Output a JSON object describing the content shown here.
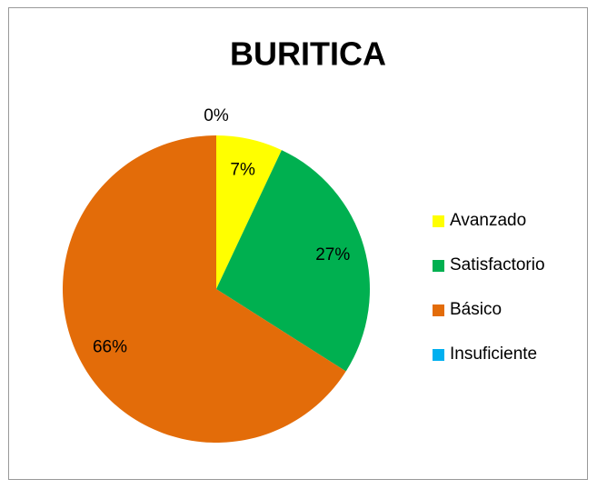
{
  "chart_data": {
    "type": "pie",
    "title": "BURITICA",
    "categories": [
      "Avanzado",
      "Satisfactorio",
      "Básico",
      "Insuficiente"
    ],
    "values": [
      7,
      27,
      66,
      0
    ],
    "value_labels": [
      "7%",
      "27%",
      "66%",
      "0%"
    ],
    "colors": [
      "#ffff00",
      "#00b050",
      "#e36c09",
      "#00b0f0"
    ],
    "legend": "right"
  }
}
